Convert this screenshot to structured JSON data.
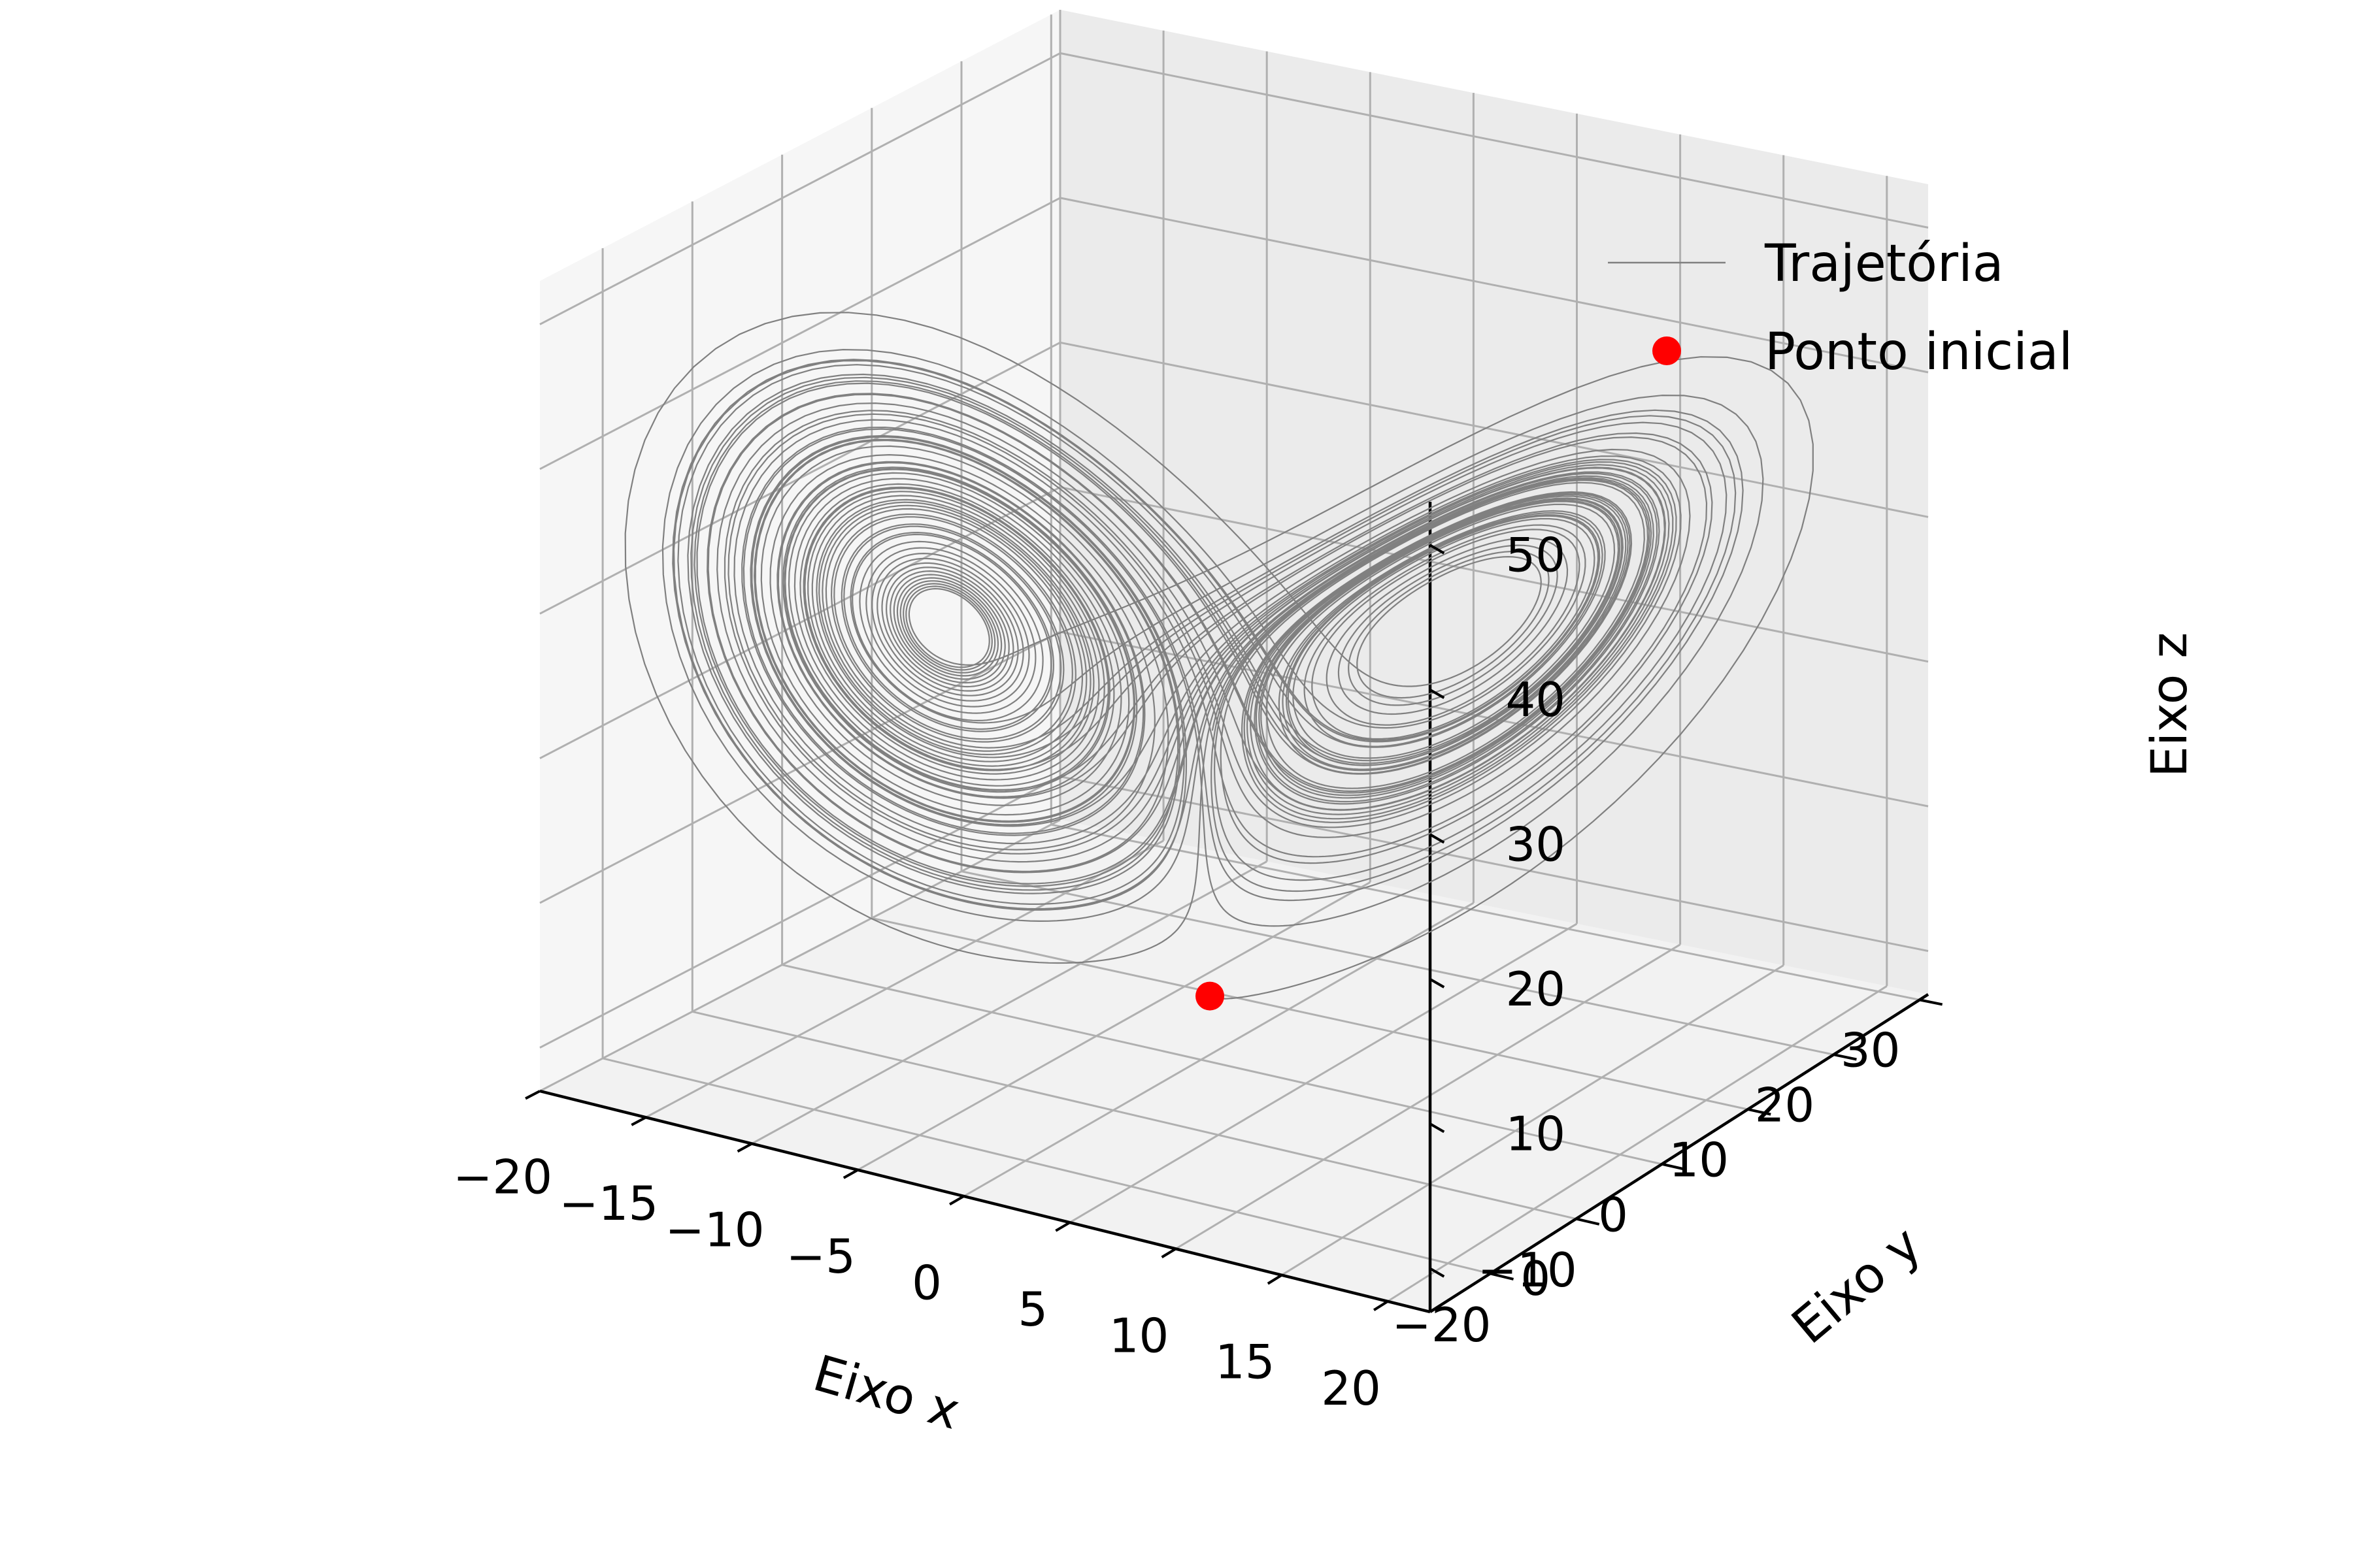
{
  "chart_data": {
    "type": "line3d",
    "title": "",
    "xlabel": "Eixo x",
    "ylabel": "Eixo y",
    "zlabel": "Eixo z",
    "xlim": [
      -20,
      22
    ],
    "ylim": [
      -27,
      31
    ],
    "zlim": [
      -3,
      53
    ],
    "xticks": [
      -20,
      -15,
      -10,
      -5,
      0,
      5,
      10,
      15,
      20
    ],
    "xtick_labels": [
      "−20",
      "−15",
      "−10",
      "−5",
      "0",
      "5",
      "10",
      "15",
      "20"
    ],
    "yticks": [
      -20,
      -10,
      0,
      10,
      20,
      30
    ],
    "ytick_labels": [
      "−20",
      "−10",
      "0",
      "10",
      "20",
      "30"
    ],
    "zticks": [
      0,
      10,
      20,
      30,
      40,
      50
    ],
    "ztick_labels": [
      "0",
      "10",
      "20",
      "30",
      "40",
      "50"
    ],
    "grid": true,
    "legend_position": "top-right",
    "series": [
      {
        "name": "Trajetória",
        "kind": "line",
        "color": "#808080",
        "generator": "lorenz",
        "parameters": {
          "sigma": 10,
          "rho": 28,
          "beta": 2.6667
        },
        "start": [
          0,
          1,
          1.05
        ]
      },
      {
        "name": "Ponto inicial",
        "kind": "point",
        "color": "#ff0000",
        "points": [
          [
            0,
            1,
            1.05
          ]
        ]
      }
    ]
  }
}
